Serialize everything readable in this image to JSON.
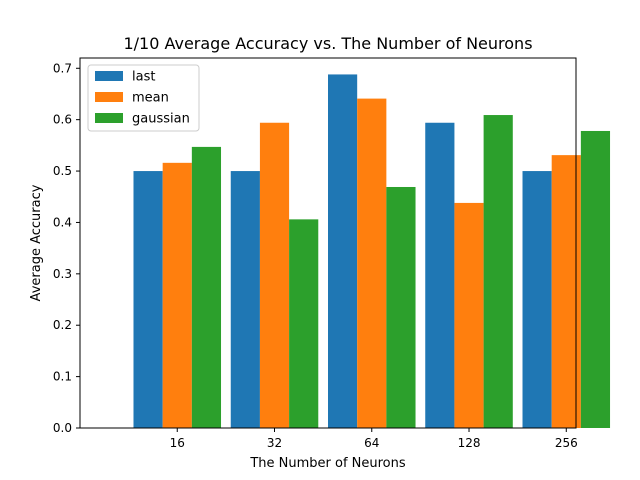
{
  "chart_data": {
    "type": "bar",
    "title": "1/10 Average Accuracy vs. The Number of Neurons",
    "xlabel": "The Number of Neurons",
    "ylabel": "Average Accuracy",
    "categories": [
      "16",
      "32",
      "64",
      "128",
      "256"
    ],
    "ylim": [
      0,
      0.72
    ],
    "yticks": [
      0.0,
      0.1,
      0.2,
      0.3,
      0.4,
      0.5,
      0.6,
      0.7
    ],
    "ytick_labels": [
      "0.0",
      "0.1",
      "0.2",
      "0.3",
      "0.4",
      "0.5",
      "0.6",
      "0.7"
    ],
    "grid": false,
    "legend_position": "top-left",
    "series": [
      {
        "name": "last",
        "color": "#1f77b4",
        "values": [
          0.5,
          0.5,
          0.688,
          0.594,
          0.5
        ]
      },
      {
        "name": "mean",
        "color": "#ff7f0e",
        "values": [
          0.516,
          0.594,
          0.641,
          0.438,
          0.531
        ]
      },
      {
        "name": "gaussian",
        "color": "#2ca02c",
        "values": [
          0.547,
          0.406,
          0.469,
          0.609,
          0.578
        ]
      }
    ]
  }
}
